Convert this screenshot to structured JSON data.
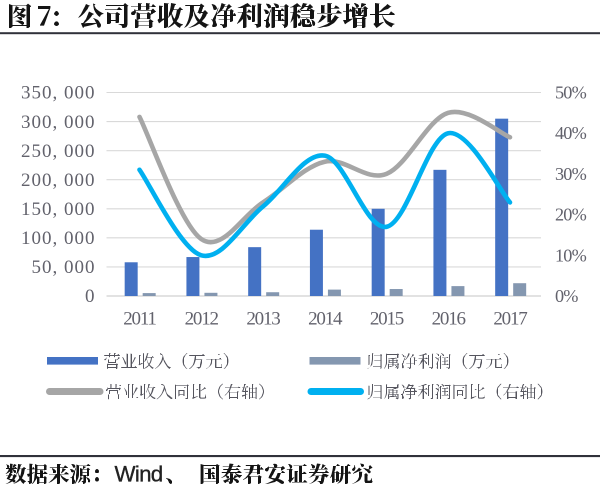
{
  "header": {
    "figure_label": "图 7:",
    "title": "公司营收及净利润稳步增长"
  },
  "chart_data": {
    "type": "combo",
    "categories": [
      "2011",
      "2012",
      "2013",
      "2014",
      "2015",
      "2016",
      "2017"
    ],
    "series": [
      {
        "name": "营业收入（万元）",
        "type": "bar",
        "axis": "left",
        "color": "#4472C4",
        "values": [
          58000,
          67000,
          84000,
          114000,
          150000,
          217000,
          305000
        ]
      },
      {
        "name": "归属净利润（万元）",
        "type": "bar",
        "axis": "left",
        "color": "#8497B0",
        "values": [
          5000,
          5500,
          6500,
          11000,
          12000,
          17000,
          22000
        ]
      },
      {
        "name": "营业收入同比（右轴）",
        "type": "line",
        "axis": "right",
        "color": "#A6A6A6",
        "values": [
          44,
          14,
          23,
          33,
          30,
          45,
          39
        ]
      },
      {
        "name": "归属净利润同比（右轴）",
        "type": "line",
        "axis": "right",
        "color": "#00B0F0",
        "values": [
          31,
          10,
          22,
          34.5,
          17,
          40,
          23
        ]
      }
    ],
    "left_axis": {
      "min": 0,
      "max": 350000,
      "step": 50000,
      "tick_labels": [
        "350, 000",
        "300, 000",
        "250, 000",
        "200, 000",
        "150, 000",
        "100, 000",
        "50, 000",
        "0"
      ]
    },
    "right_axis": {
      "min": 0,
      "max": 50,
      "step": 10,
      "tick_labels": [
        "50%",
        "40%",
        "30%",
        "20%",
        "10%",
        "0%"
      ]
    },
    "grid": true,
    "legend_position": "bottom",
    "title": "公司营收及净利润稳步增长"
  },
  "legend": {
    "items": [
      {
        "label": "营业收入（万元）",
        "marker": "bar",
        "color": "#4472C4"
      },
      {
        "label": "归属净利润（万元）",
        "marker": "bar",
        "color": "#8497B0"
      },
      {
        "label": "营业收入同比（右轴）",
        "marker": "line",
        "color": "#A6A6A6"
      },
      {
        "label": "归属净利润同比（右轴）",
        "marker": "line",
        "color": "#00B0F0"
      }
    ]
  },
  "footer": {
    "source_prefix": "数据来源：",
    "source_name": "Wind",
    "source_separator": "、",
    "source_suffix": "国泰君安证券研究"
  },
  "colors": {
    "revenue_bar": "#4472C4",
    "profit_bar": "#8497B0",
    "revenue_yoy_line": "#A6A6A6",
    "profit_yoy_line": "#00B0F0",
    "gridline": "#D9D9D9",
    "axis_line": "#C6C6C6",
    "axis_label": "#62626C",
    "rule": "#30313A",
    "text": "#141414"
  }
}
